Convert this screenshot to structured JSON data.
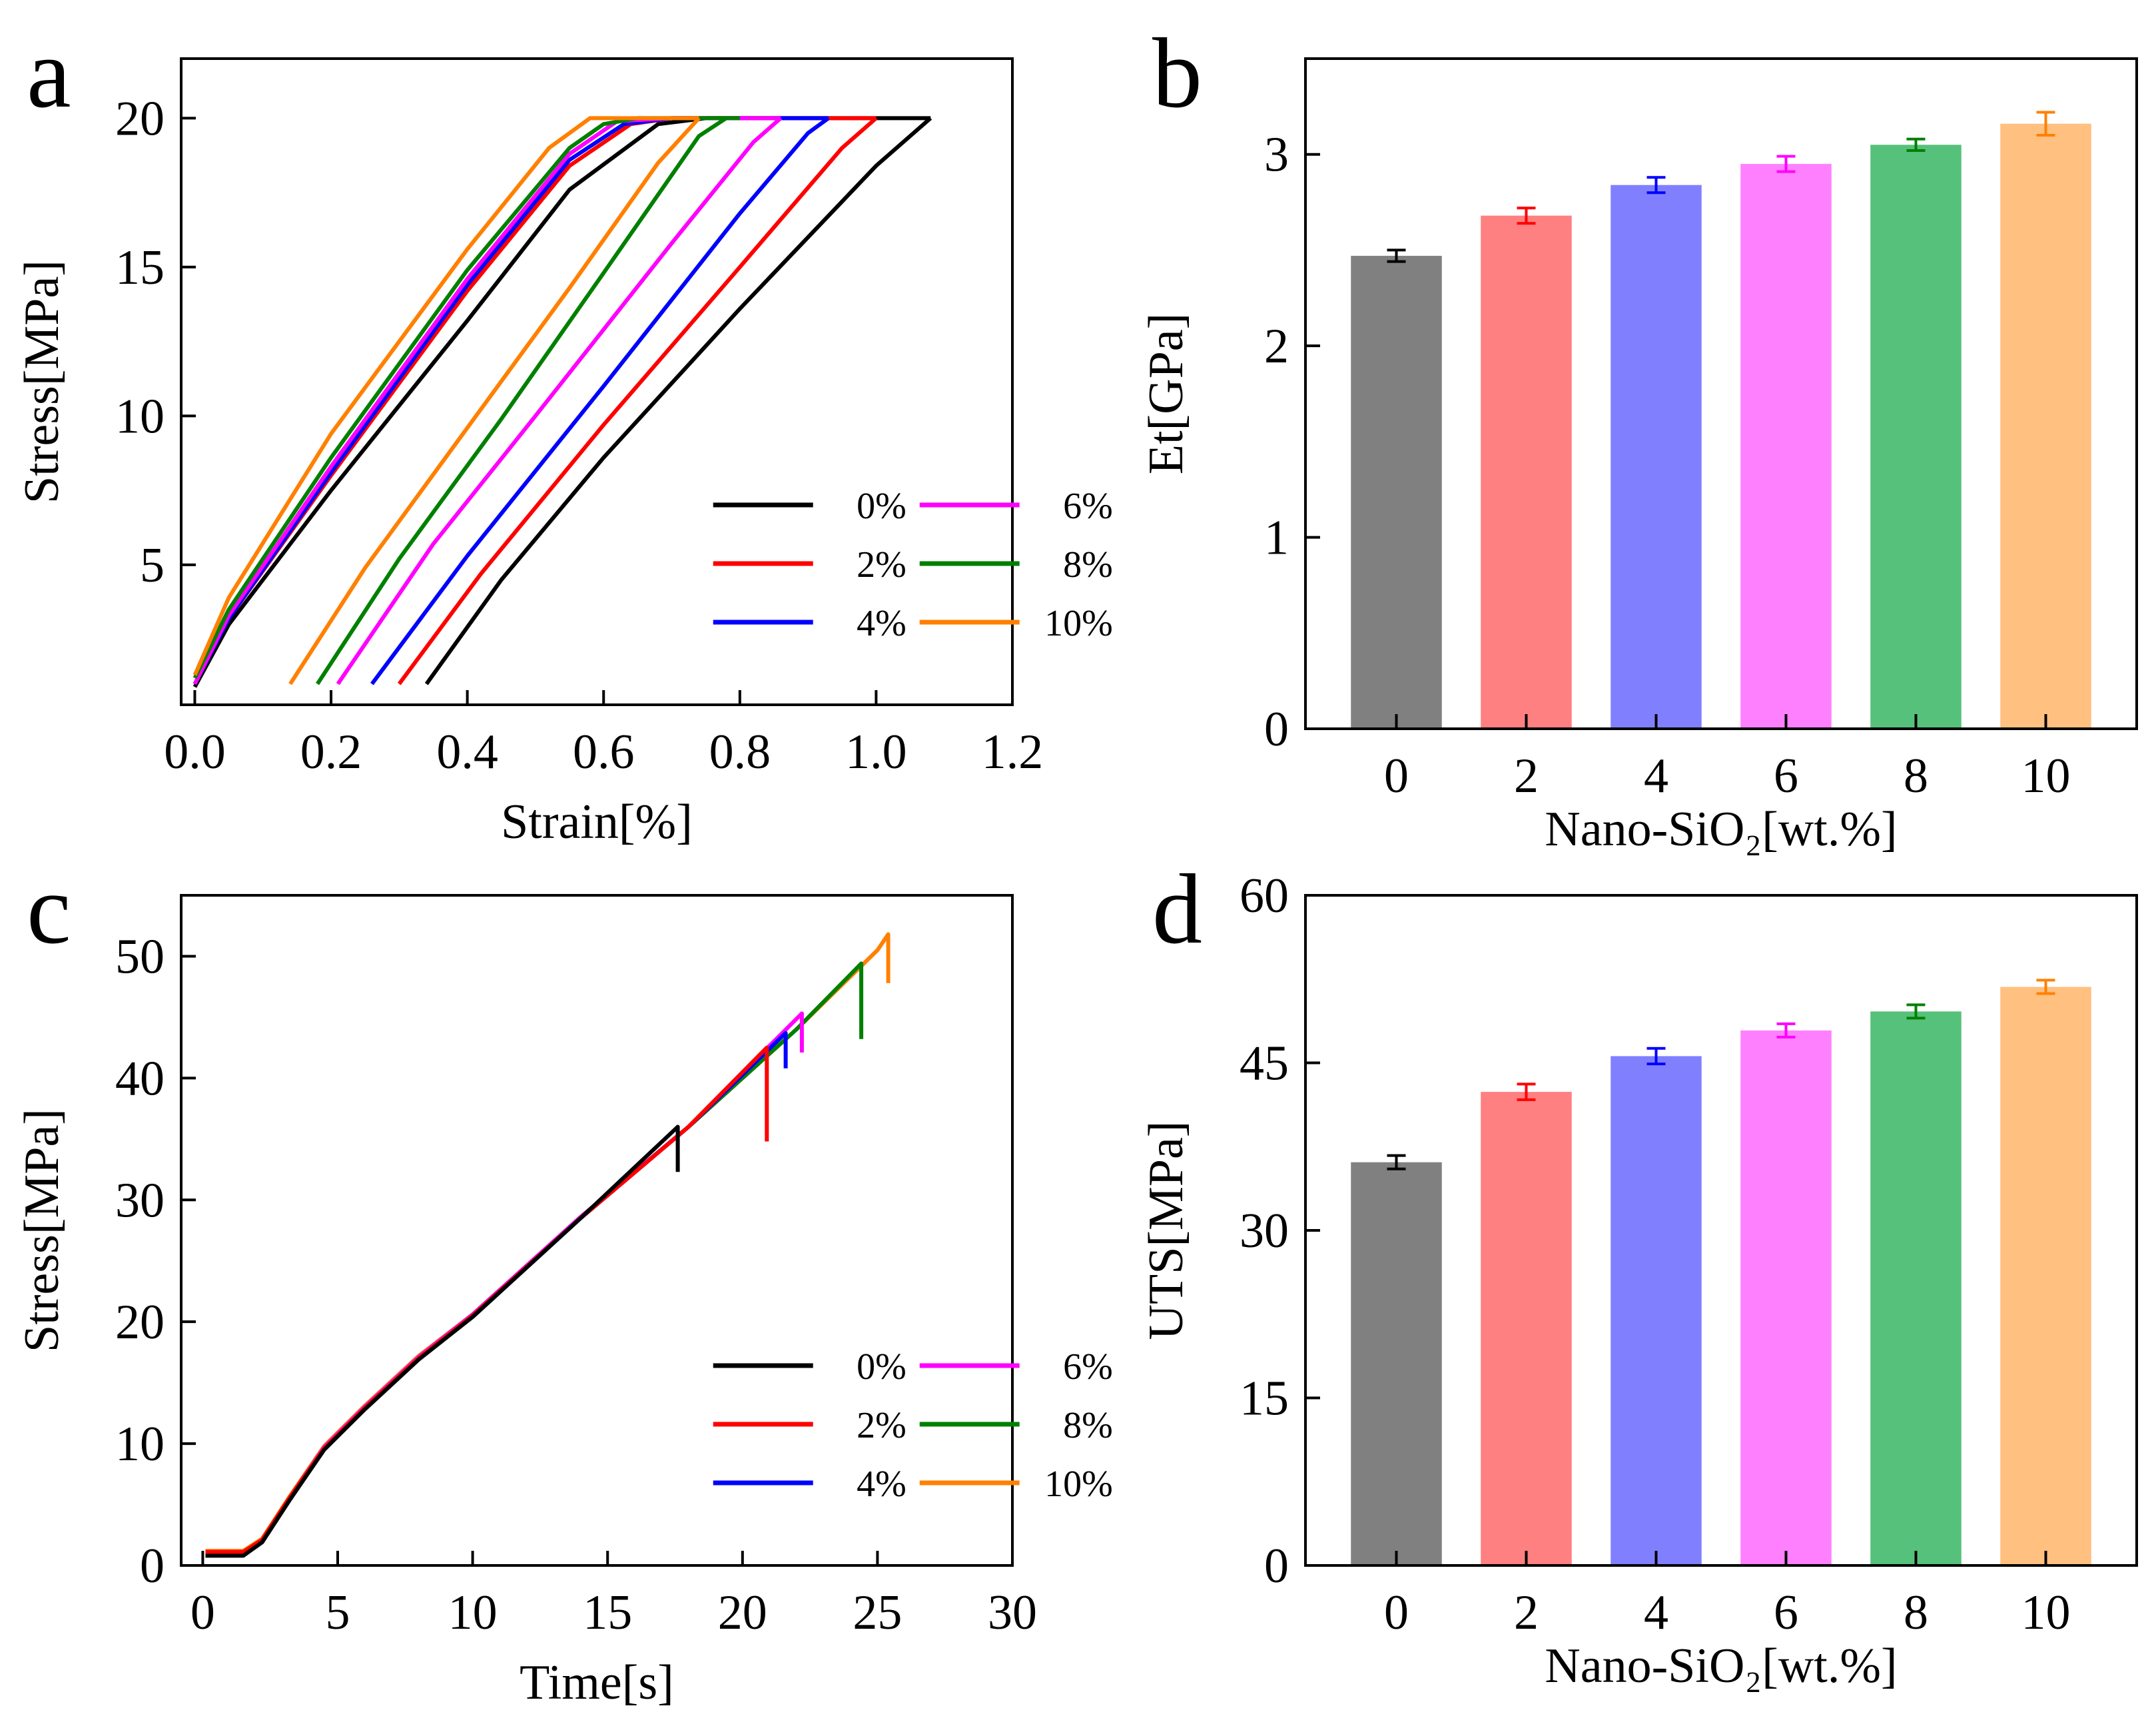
{
  "chart_data": [
    {
      "panel_letter": "a",
      "type": "line",
      "xlabel": "Strain[%]",
      "ylabel": "Stress[MPa]",
      "xlim": [
        -0.02,
        1.2
      ],
      "ylim": [
        0.3,
        22
      ],
      "xticks": [
        "0.0",
        "0.2",
        "0.4",
        "0.6",
        "0.8",
        "1.0",
        "1.2"
      ],
      "yticks": [
        "5",
        "10",
        "15",
        "20"
      ],
      "legend_position": "bottom-right",
      "series": [
        {
          "name": "0%",
          "color": "#000000",
          "points": [
            [
              0.0,
              0.9
            ],
            [
              0.05,
              3.0
            ],
            [
              0.2,
              7.5
            ],
            [
              0.4,
              13.2
            ],
            [
              0.55,
              17.6
            ],
            [
              0.68,
              19.8
            ],
            [
              0.75,
              20.0
            ],
            [
              1.08,
              20.0
            ]
          ]
        },
        {
          "name": "0%",
          "color": "#000000",
          "points": [
            [
              0.34,
              1.0
            ],
            [
              0.45,
              4.5
            ],
            [
              0.6,
              8.6
            ],
            [
              0.8,
              13.6
            ],
            [
              1.0,
              18.4
            ],
            [
              1.08,
              20.0
            ]
          ]
        },
        {
          "name": "2%",
          "color": "#ff0000",
          "points": [
            [
              0.0,
              1.0
            ],
            [
              0.05,
              3.2
            ],
            [
              0.2,
              8.0
            ],
            [
              0.4,
              14.2
            ],
            [
              0.55,
              18.4
            ],
            [
              0.64,
              19.8
            ],
            [
              0.7,
              20.0
            ],
            [
              1.0,
              20.0
            ]
          ]
        },
        {
          "name": "2%",
          "color": "#ff0000",
          "points": [
            [
              0.3,
              1.0
            ],
            [
              0.42,
              4.7
            ],
            [
              0.6,
              9.7
            ],
            [
              0.8,
              15.0
            ],
            [
              0.95,
              19.0
            ],
            [
              1.0,
              20.0
            ]
          ]
        },
        {
          "name": "4%",
          "color": "#0000ff",
          "points": [
            [
              0.0,
              1.0
            ],
            [
              0.05,
              3.2
            ],
            [
              0.2,
              8.1
            ],
            [
              0.4,
              14.4
            ],
            [
              0.55,
              18.6
            ],
            [
              0.63,
              19.8
            ],
            [
              0.7,
              20.0
            ],
            [
              0.93,
              20.0
            ]
          ]
        },
        {
          "name": "4%",
          "color": "#0000ff",
          "points": [
            [
              0.26,
              1.0
            ],
            [
              0.4,
              5.3
            ],
            [
              0.6,
              11.0
            ],
            [
              0.8,
              16.8
            ],
            [
              0.9,
              19.5
            ],
            [
              0.93,
              20.0
            ]
          ]
        },
        {
          "name": "6%",
          "color": "#ff00ff",
          "points": [
            [
              0.0,
              1.0
            ],
            [
              0.05,
              3.3
            ],
            [
              0.2,
              8.3
            ],
            [
              0.4,
              14.6
            ],
            [
              0.55,
              18.8
            ],
            [
              0.62,
              19.9
            ],
            [
              0.7,
              20.0
            ],
            [
              0.86,
              20.0
            ]
          ]
        },
        {
          "name": "6%",
          "color": "#ff00ff",
          "points": [
            [
              0.21,
              1.0
            ],
            [
              0.35,
              5.7
            ],
            [
              0.5,
              10.0
            ],
            [
              0.7,
              15.8
            ],
            [
              0.82,
              19.2
            ],
            [
              0.86,
              20.0
            ]
          ]
        },
        {
          "name": "8%",
          "color": "#008000",
          "points": [
            [
              0.0,
              1.2
            ],
            [
              0.05,
              3.5
            ],
            [
              0.2,
              8.6
            ],
            [
              0.4,
              14.9
            ],
            [
              0.55,
              19.0
            ],
            [
              0.6,
              19.8
            ],
            [
              0.65,
              20.0
            ],
            [
              0.8,
              20.0
            ]
          ]
        },
        {
          "name": "8%",
          "color": "#008000",
          "points": [
            [
              0.18,
              1.0
            ],
            [
              0.3,
              5.2
            ],
            [
              0.45,
              9.9
            ],
            [
              0.6,
              14.8
            ],
            [
              0.74,
              19.4
            ],
            [
              0.78,
              20.0
            ]
          ]
        },
        {
          "name": "10%",
          "color": "#ff8000",
          "points": [
            [
              0.0,
              1.3
            ],
            [
              0.05,
              3.9
            ],
            [
              0.2,
              9.4
            ],
            [
              0.4,
              15.6
            ],
            [
              0.52,
              19.0
            ],
            [
              0.58,
              20.0
            ],
            [
              0.65,
              20.0
            ],
            [
              0.74,
              20.0
            ]
          ]
        },
        {
          "name": "10%",
          "color": "#ff8000",
          "points": [
            [
              0.14,
              1.0
            ],
            [
              0.25,
              4.9
            ],
            [
              0.4,
              9.6
            ],
            [
              0.55,
              14.3
            ],
            [
              0.68,
              18.5
            ],
            [
              0.74,
              20.0
            ]
          ]
        }
      ]
    },
    {
      "panel_letter": "b",
      "type": "bar",
      "xlabel": "Nano-SiO₂[wt.%]",
      "ylabel": "Et[GPa]",
      "ylim": [
        0,
        3.5
      ],
      "yticks": [
        "0",
        "1",
        "2",
        "3"
      ],
      "categories": [
        "0",
        "2",
        "4",
        "6",
        "8",
        "10"
      ],
      "values": [
        2.47,
        2.68,
        2.84,
        2.95,
        3.05,
        3.16
      ],
      "errors": [
        0.03,
        0.04,
        0.04,
        0.04,
        0.03,
        0.06
      ],
      "colors": [
        "#808080",
        "#ff8080",
        "#8080ff",
        "#ff80ff",
        "#56c17a",
        "#ffc080"
      ],
      "error_colors": [
        "#000000",
        "#ff0000",
        "#0000ff",
        "#ff00ff",
        "#008000",
        "#ff8000"
      ]
    },
    {
      "panel_letter": "c",
      "type": "line",
      "xlabel": "Time[s]",
      "ylabel": "Stress[MPa]",
      "xlim": [
        -0.8,
        30
      ],
      "ylim": [
        0,
        55
      ],
      "xticks": [
        "0",
        "5",
        "10",
        "15",
        "20",
        "25",
        "30"
      ],
      "yticks": [
        "0",
        "10",
        "20",
        "30",
        "40",
        "50"
      ],
      "legend_position": "bottom-right",
      "series": [
        {
          "name": "10%",
          "color": "#ff8000",
          "points": [
            [
              0.1,
              1.2
            ],
            [
              1.5,
              1.2
            ],
            [
              2.2,
              2.2
            ],
            [
              3.2,
              5.6
            ],
            [
              4.5,
              9.8
            ],
            [
              6,
              13.1
            ],
            [
              8,
              17.2
            ],
            [
              10,
              20.6
            ],
            [
              14,
              28.6
            ],
            [
              18,
              36.0
            ],
            [
              22,
              44.0
            ],
            [
              25,
              50.5
            ],
            [
              25.4,
              51.8
            ],
            [
              25.4,
              47.8
            ]
          ]
        },
        {
          "name": "8%",
          "color": "#008000",
          "points": [
            [
              0.1,
              1.1
            ],
            [
              1.5,
              1.1
            ],
            [
              2.2,
              2.1
            ],
            [
              3.2,
              5.5
            ],
            [
              4.5,
              9.7
            ],
            [
              6,
              13.0
            ],
            [
              8,
              17.1
            ],
            [
              10,
              20.6
            ],
            [
              14,
              28.6
            ],
            [
              18,
              36.0
            ],
            [
              22,
              44.0
            ],
            [
              24.4,
              49.4
            ],
            [
              24.4,
              43.2
            ]
          ]
        },
        {
          "name": "6%",
          "color": "#ff00ff",
          "points": [
            [
              0.1,
              1.1
            ],
            [
              1.5,
              1.1
            ],
            [
              2.2,
              2.1
            ],
            [
              3.2,
              5.5
            ],
            [
              4.5,
              9.7
            ],
            [
              6,
              13.0
            ],
            [
              8,
              17.1
            ],
            [
              10,
              20.6
            ],
            [
              14,
              28.6
            ],
            [
              18,
              36.0
            ],
            [
              22.2,
              45.3
            ],
            [
              22.2,
              42.1
            ]
          ]
        },
        {
          "name": "4%",
          "color": "#0000ff",
          "points": [
            [
              0.1,
              1.0
            ],
            [
              1.5,
              1.0
            ],
            [
              2.2,
              2.0
            ],
            [
              3.2,
              5.4
            ],
            [
              4.5,
              9.6
            ],
            [
              6,
              12.9
            ],
            [
              8,
              17.0
            ],
            [
              10,
              20.4
            ],
            [
              14,
              28.5
            ],
            [
              18,
              36.0
            ],
            [
              21.6,
              43.7
            ],
            [
              21.6,
              40.8
            ]
          ]
        },
        {
          "name": "2%",
          "color": "#ff0000",
          "points": [
            [
              0.1,
              1.1
            ],
            [
              1.5,
              1.1
            ],
            [
              2.2,
              2.1
            ],
            [
              3.2,
              5.5
            ],
            [
              4.5,
              9.6
            ],
            [
              6,
              12.9
            ],
            [
              8,
              17.0
            ],
            [
              10,
              20.5
            ],
            [
              14,
              28.5
            ],
            [
              18,
              36.0
            ],
            [
              20.9,
              42.5
            ],
            [
              20.9,
              34.8
            ]
          ]
        },
        {
          "name": "0%",
          "color": "#000000",
          "points": [
            [
              0.1,
              0.8
            ],
            [
              1.5,
              0.8
            ],
            [
              2.2,
              1.9
            ],
            [
              3.2,
              5.3
            ],
            [
              4.5,
              9.5
            ],
            [
              6,
              12.8
            ],
            [
              8,
              16.9
            ],
            [
              10,
              20.4
            ],
            [
              14,
              28.5
            ],
            [
              17.6,
              36.0
            ],
            [
              17.6,
              32.3
            ]
          ]
        }
      ]
    },
    {
      "panel_letter": "d",
      "type": "bar",
      "xlabel": "Nano-SiO₂[wt.%]",
      "ylabel": "UTS[MPa]",
      "ylim": [
        0,
        60
      ],
      "yticks": [
        "0",
        "15",
        "30",
        "45",
        "60"
      ],
      "categories": [
        "0",
        "2",
        "4",
        "6",
        "8",
        "10"
      ],
      "values": [
        36.1,
        42.4,
        45.6,
        47.9,
        49.6,
        51.8
      ],
      "errors": [
        0.6,
        0.7,
        0.7,
        0.6,
        0.6,
        0.6
      ],
      "colors": [
        "#808080",
        "#ff8080",
        "#8080ff",
        "#ff80ff",
        "#56c17a",
        "#ffc080"
      ],
      "error_colors": [
        "#000000",
        "#ff0000",
        "#0000ff",
        "#ff00ff",
        "#008000",
        "#ff8000"
      ]
    }
  ]
}
